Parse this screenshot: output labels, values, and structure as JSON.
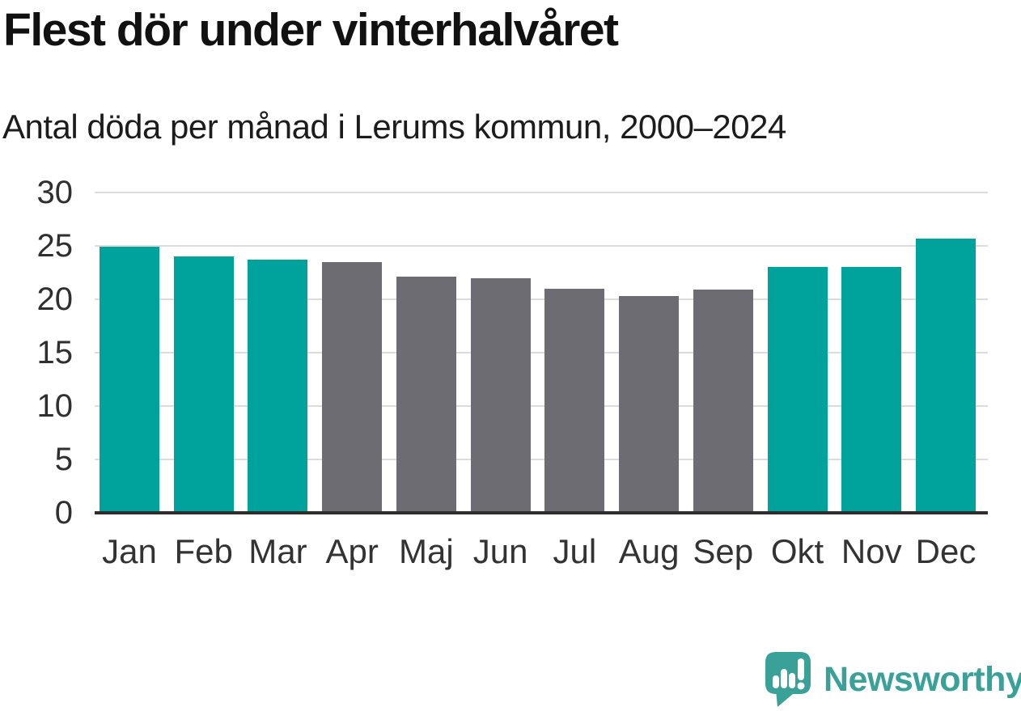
{
  "title": "Flest dör under vinterhalvåret",
  "subtitle": "Antal döda per månad i Lerums kommun, 2000–2024",
  "chart_data": {
    "type": "bar",
    "title": "Flest dör under vinterhalvåret",
    "subtitle": "Antal döda per månad i Lerums kommun, 2000–2024",
    "categories": [
      "Jan",
      "Feb",
      "Mar",
      "Apr",
      "Maj",
      "Jun",
      "Jul",
      "Aug",
      "Sep",
      "Okt",
      "Nov",
      "Dec"
    ],
    "values": [
      24.9,
      24.0,
      23.7,
      23.5,
      22.1,
      22.0,
      21.0,
      20.3,
      20.9,
      23.0,
      23.0,
      25.7
    ],
    "color_keys": [
      "highlight",
      "highlight",
      "highlight",
      "base",
      "base",
      "base",
      "base",
      "base",
      "base",
      "highlight",
      "highlight",
      "highlight"
    ],
    "xlabel": "",
    "ylabel": "",
    "ylim": [
      0,
      30
    ],
    "yticks": [
      0,
      5,
      10,
      15,
      20,
      25,
      30
    ],
    "grid": true,
    "legend": false,
    "colors": {
      "highlight": "#00a39b",
      "base": "#6c6c72"
    }
  },
  "style_colors": {
    "gridline": "#dcdcdc",
    "axis_line": "#2e2e2e",
    "y_tick_label": "#2f2f2f",
    "x_tick_label": "#333333",
    "title": "#111111",
    "subtitle": "#1c1c1c",
    "brand": "#3aa199",
    "background": "#ffffff"
  },
  "footer": {
    "brand": "Newsworthy"
  }
}
